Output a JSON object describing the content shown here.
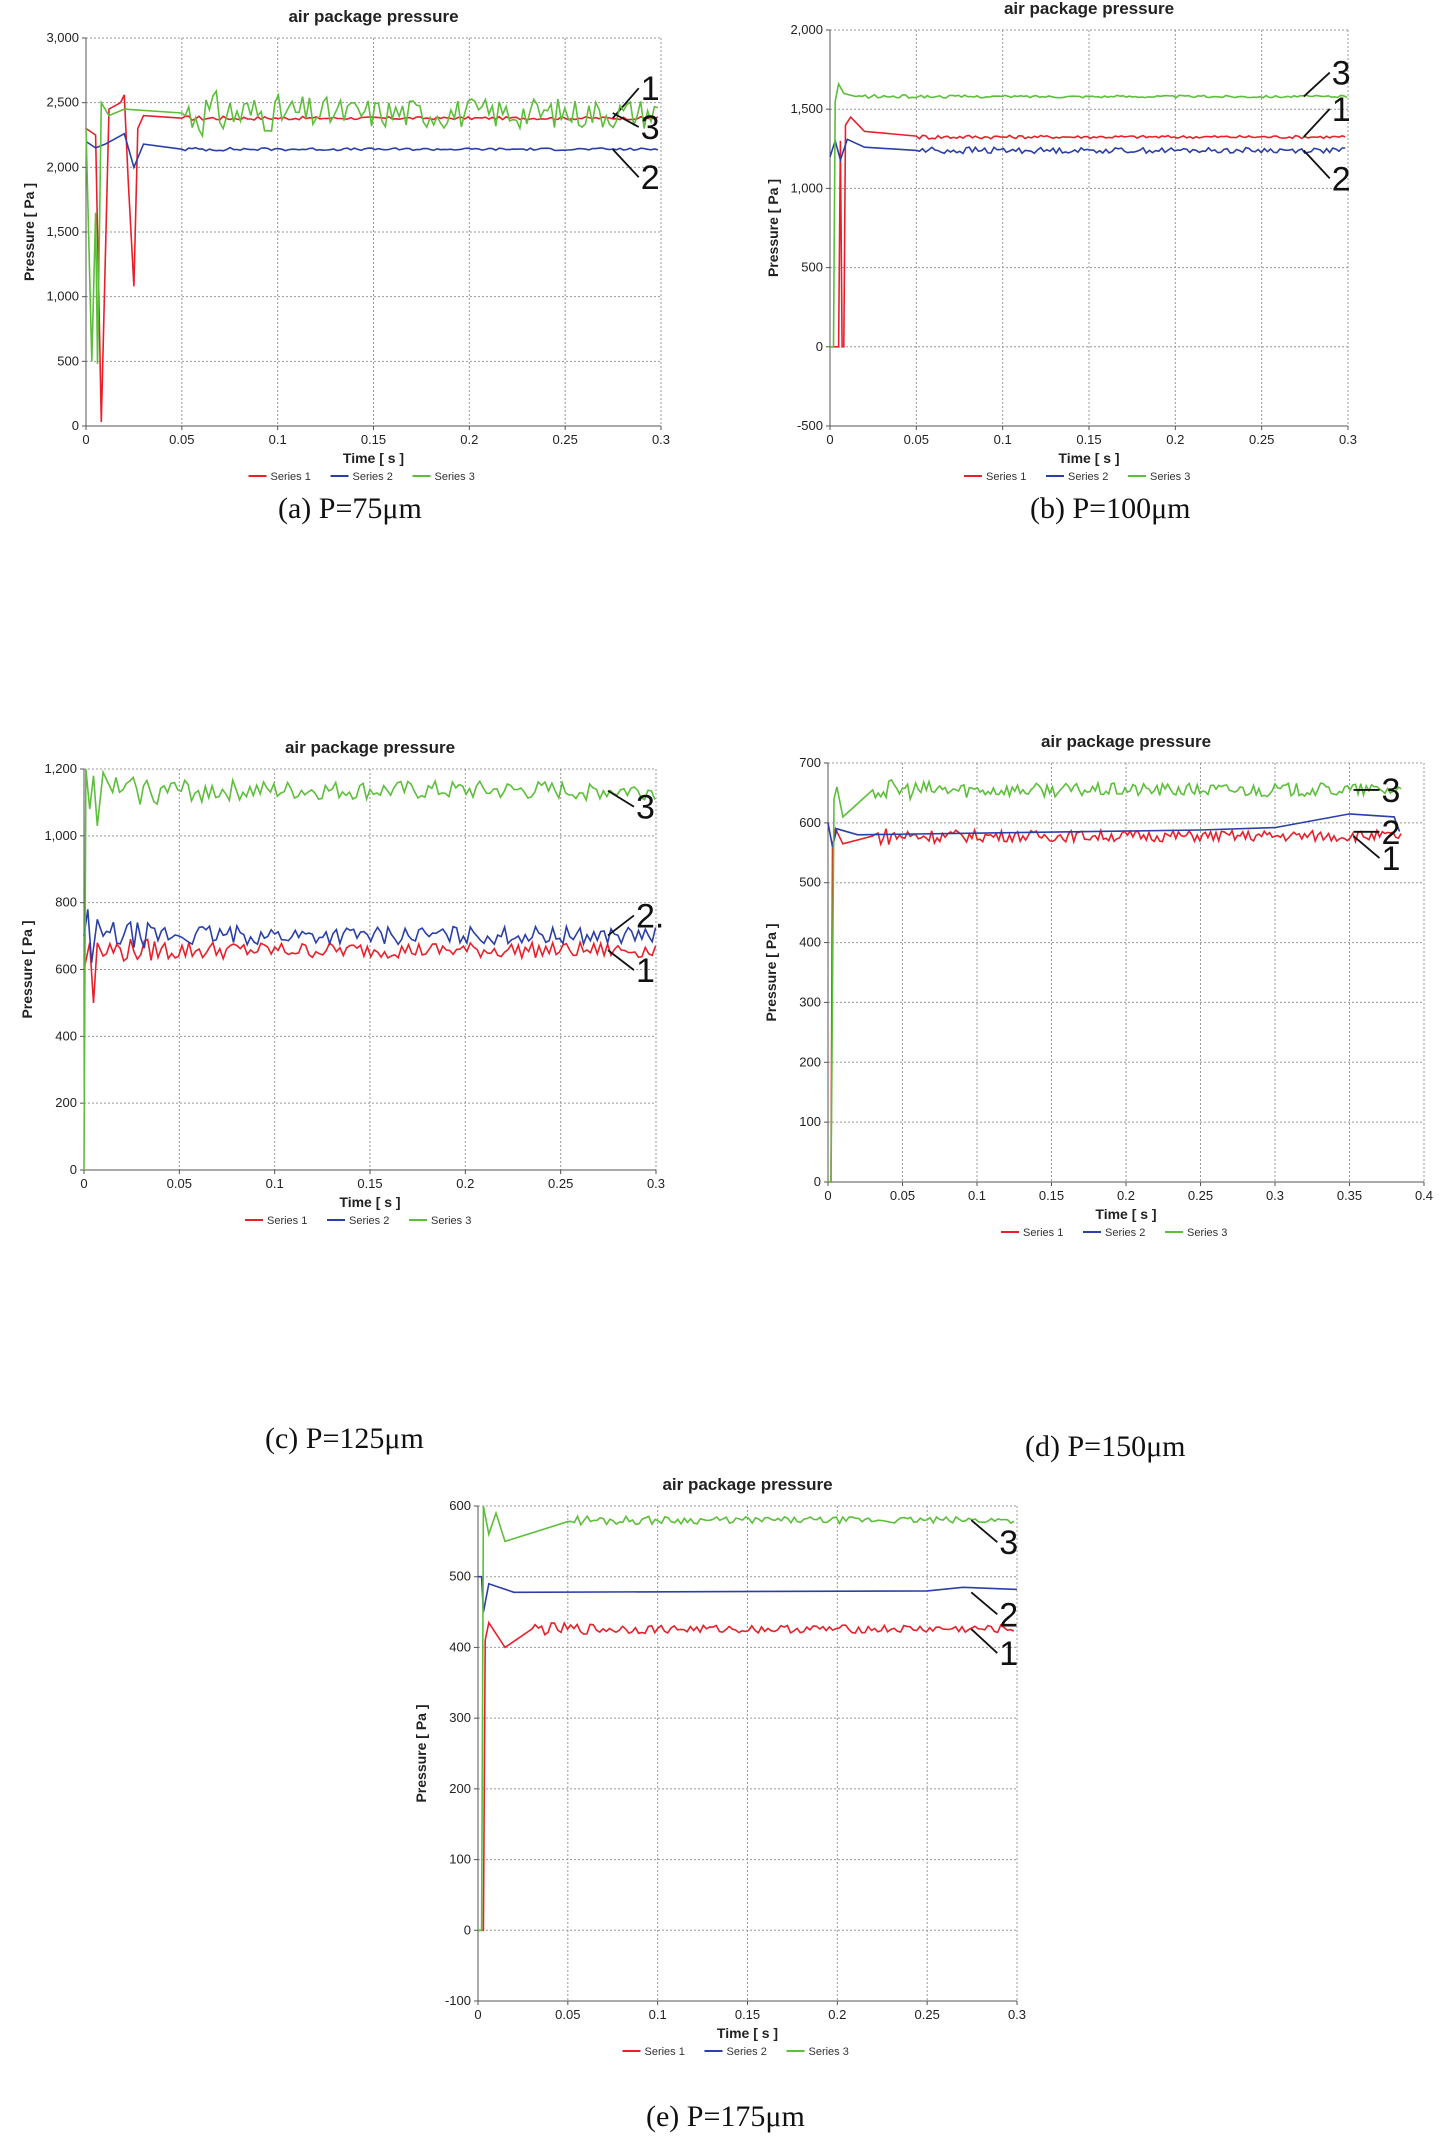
{
  "chart_data": [
    {
      "type": "line",
      "title": "air package pressure",
      "caption": "(a) P=75μm",
      "xlabel": "Time [ s ]",
      "ylabel": "Pressure [ Pa ]",
      "xlim": [
        0,
        0.3
      ],
      "ylim": [
        0,
        3000
      ],
      "xticks": [
        0,
        0.05,
        0.1,
        0.15,
        0.2,
        0.25,
        0.3
      ],
      "xtick_labels": [
        "0",
        "0.05",
        "0.1",
        "0.15",
        "0.2",
        "0.25",
        "0.3"
      ],
      "yticks": [
        0,
        500,
        1000,
        1500,
        2000,
        2500,
        3000
      ],
      "ytick_labels": [
        "0",
        "500",
        "1,000",
        "1,500",
        "2,000",
        "2,500",
        "3,000"
      ],
      "grid": true,
      "legend": [
        "Series 1",
        "Series 2",
        "Series 3"
      ],
      "colors": [
        "#e8202a",
        "#2b3fa8",
        "#5cbf3a"
      ],
      "callouts": [
        "1",
        "2",
        "3"
      ],
      "series": [
        {
          "name": "Series 1",
          "label": "1",
          "steady": 2380,
          "start": 2300,
          "noise": 12,
          "transient": [
            [
              0,
              2300
            ],
            [
              0.005,
              2250
            ],
            [
              0.008,
              30
            ],
            [
              0.012,
              2450
            ],
            [
              0.018,
              2500
            ],
            [
              0.02,
              2560
            ],
            [
              0.022,
              1900
            ],
            [
              0.025,
              1080
            ],
            [
              0.027,
              2300
            ],
            [
              0.03,
              2400
            ],
            [
              0.05,
              2380
            ]
          ]
        },
        {
          "name": "Series 2",
          "label": "2",
          "steady": 2140,
          "start": 2200,
          "noise": 10,
          "transient": [
            [
              0,
              2200
            ],
            [
              0.005,
              2150
            ],
            [
              0.01,
              2180
            ],
            [
              0.015,
              2220
            ],
            [
              0.02,
              2260
            ],
            [
              0.025,
              2000
            ],
            [
              0.03,
              2180
            ],
            [
              0.05,
              2140
            ]
          ]
        },
        {
          "name": "Series 3",
          "label": "3",
          "steady": 2420,
          "start": 2300,
          "noise": 90,
          "transient": [
            [
              0,
              2300
            ],
            [
              0.003,
              500
            ],
            [
              0.005,
              1650
            ],
            [
              0.006,
              480
            ],
            [
              0.008,
              2500
            ],
            [
              0.012,
              2400
            ],
            [
              0.02,
              2450
            ],
            [
              0.05,
              2420
            ]
          ]
        }
      ]
    },
    {
      "type": "line",
      "title": "air package pressure",
      "caption": "(b) P=100μm",
      "xlabel": "Time [ s ]",
      "ylabel": "Pressure [ Pa ]",
      "xlim": [
        0,
        0.3
      ],
      "ylim": [
        -500,
        2000
      ],
      "xticks": [
        0,
        0.05,
        0.1,
        0.15,
        0.2,
        0.25,
        0.3
      ],
      "xtick_labels": [
        "0",
        "0.05",
        "0.1",
        "0.15",
        "0.2",
        "0.25",
        "0.3"
      ],
      "yticks": [
        -500,
        0,
        500,
        1000,
        1500,
        2000
      ],
      "ytick_labels": [
        "-500",
        "0",
        "500",
        "1,000",
        "1,500",
        "2,000"
      ],
      "grid": true,
      "legend": [
        "Series 1",
        "Series 2",
        "Series 3"
      ],
      "colors": [
        "#e8202a",
        "#2b3fa8",
        "#5cbf3a"
      ],
      "callouts": [
        "1",
        "2",
        "3"
      ],
      "series": [
        {
          "name": "Series 1",
          "label": "1",
          "steady": 1325,
          "start": 0,
          "noise": 10,
          "transient": [
            [
              0,
              0
            ],
            [
              0.005,
              0
            ],
            [
              0.006,
              1300
            ],
            [
              0.007,
              0
            ],
            [
              0.008,
              0
            ],
            [
              0.009,
              1400
            ],
            [
              0.012,
              1450
            ],
            [
              0.02,
              1360
            ],
            [
              0.05,
              1330
            ]
          ]
        },
        {
          "name": "Series 2",
          "label": "2",
          "steady": 1240,
          "start": 1200,
          "noise": 18,
          "transient": [
            [
              0,
              1200
            ],
            [
              0.003,
              1300
            ],
            [
              0.006,
              1180
            ],
            [
              0.01,
              1310
            ],
            [
              0.02,
              1260
            ],
            [
              0.05,
              1240
            ]
          ]
        },
        {
          "name": "Series 3",
          "label": "3",
          "steady": 1580,
          "start": 0,
          "noise": 8,
          "transient": [
            [
              0,
              0
            ],
            [
              0.002,
              0
            ],
            [
              0.003,
              1550
            ],
            [
              0.005,
              1660
            ],
            [
              0.008,
              1600
            ],
            [
              0.015,
              1580
            ]
          ]
        }
      ]
    },
    {
      "type": "line",
      "title": "air package pressure",
      "caption": "(c) P=125μm",
      "xlabel": "Time [ s ]",
      "ylabel": "Pressure [ Pa ]",
      "xlim": [
        0,
        0.3
      ],
      "ylim": [
        0,
        1200
      ],
      "xticks": [
        0,
        0.05,
        0.1,
        0.15,
        0.2,
        0.25,
        0.3
      ],
      "xtick_labels": [
        "0",
        "0.05",
        "0.1",
        "0.15",
        "0.2",
        "0.25",
        "0.3"
      ],
      "yticks": [
        0,
        200,
        400,
        600,
        800,
        1000,
        1200
      ],
      "ytick_labels": [
        "0",
        "200",
        "400",
        "600",
        "800",
        "1,000",
        "1,200"
      ],
      "grid": true,
      "legend": [
        "Series 1",
        "Series 2",
        "Series 3"
      ],
      "colors": [
        "#e8202a",
        "#2b3fa8",
        "#5cbf3a"
      ],
      "callouts": [
        "1",
        "2.",
        "3"
      ],
      "series": [
        {
          "name": "Series 1",
          "label": "1",
          "steady": 658,
          "start": 600,
          "noise": 25,
          "transient": [
            [
              0,
              600
            ],
            [
              0.003,
              680
            ],
            [
              0.005,
              500
            ],
            [
              0.007,
              680
            ],
            [
              0.01,
              640
            ]
          ]
        },
        {
          "name": "Series 2",
          "label": "2.",
          "steady": 702,
          "start": 700,
          "noise": 28,
          "transient": [
            [
              0,
              700
            ],
            [
              0.002,
              780
            ],
            [
              0.004,
              620
            ],
            [
              0.007,
              750
            ],
            [
              0.01,
              700
            ]
          ]
        },
        {
          "name": "Series 3",
          "label": "3",
          "steady": 1135,
          "start": 0,
          "noise": 30,
          "transient": [
            [
              0,
              0
            ],
            [
              0.001,
              1200
            ],
            [
              0.003,
              1080
            ],
            [
              0.005,
              1180
            ],
            [
              0.007,
              1030
            ],
            [
              0.01,
              1190
            ],
            [
              0.015,
              1130
            ]
          ]
        }
      ]
    },
    {
      "type": "line",
      "title": "air package pressure",
      "caption": "(d) P=150μm",
      "xlabel": "Time [ s ]",
      "ylabel": "Pressure [ Pa ]",
      "xlim": [
        0,
        0.4
      ],
      "ylim": [
        0,
        700
      ],
      "xticks": [
        0,
        0.05,
        0.1,
        0.15,
        0.2,
        0.25,
        0.3,
        0.35,
        0.4
      ],
      "xtick_labels": [
        "0",
        "0.05",
        "0.1",
        "0.15",
        "0.2",
        "0.25",
        "0.3",
        "0.35",
        "0.4"
      ],
      "yticks": [
        0,
        100,
        200,
        300,
        400,
        500,
        600,
        700
      ],
      "ytick_labels": [
        "0",
        "100",
        "200",
        "300",
        "400",
        "500",
        "600",
        "700"
      ],
      "grid": true,
      "legend": [
        "Series 1",
        "Series 2",
        "Series 3"
      ],
      "colors": [
        "#e8202a",
        "#2b3fa8",
        "#5cbf3a"
      ],
      "callouts": [
        "1",
        "2",
        "3"
      ],
      "series": [
        {
          "name": "Series 1",
          "label": "1",
          "steady": 578,
          "start": 0,
          "noise": 10,
          "transient": [
            [
              0,
              0
            ],
            [
              0.002,
              0
            ],
            [
              0.003,
              560
            ],
            [
              0.005,
              590
            ],
            [
              0.01,
              565
            ],
            [
              0.03,
              578
            ]
          ]
        },
        {
          "name": "Series 2",
          "label": "2",
          "steady": 585,
          "start": 600,
          "noise": 10,
          "transient": [
            [
              0,
              600
            ],
            [
              0.003,
              560
            ],
            [
              0.006,
              590
            ],
            [
              0.02,
              580
            ],
            [
              0.25,
              588
            ],
            [
              0.3,
              592
            ],
            [
              0.35,
              615
            ],
            [
              0.38,
              610
            ]
          ]
        },
        {
          "name": "Series 3",
          "label": "3",
          "steady": 655,
          "start": 0,
          "noise": 12,
          "transient": [
            [
              0,
              0
            ],
            [
              0.002,
              0
            ],
            [
              0.004,
              640
            ],
            [
              0.006,
              660
            ],
            [
              0.01,
              610
            ],
            [
              0.03,
              655
            ]
          ]
        }
      ]
    },
    {
      "type": "line",
      "title": "air package pressure",
      "caption": "(e) P=175μm",
      "xlabel": "Time [ s ]",
      "ylabel": "Pressure [ Pa ]",
      "xlim": [
        0,
        0.3
      ],
      "ylim": [
        -100,
        600
      ],
      "xticks": [
        0,
        0.05,
        0.1,
        0.15,
        0.2,
        0.25,
        0.3
      ],
      "xtick_labels": [
        "0",
        "0.05",
        "0.1",
        "0.15",
        "0.2",
        "0.25",
        "0.3"
      ],
      "yticks": [
        -100,
        0,
        100,
        200,
        300,
        400,
        500,
        600
      ],
      "ytick_labels": [
        "-100",
        "0",
        "100",
        "200",
        "300",
        "400",
        "500",
        "600"
      ],
      "grid": true,
      "legend": [
        "Series 1",
        "Series 2",
        "Series 3"
      ],
      "colors": [
        "#e8202a",
        "#2b3fa8",
        "#5cbf3a"
      ],
      "callouts": [
        "1",
        "2",
        "3"
      ],
      "series": [
        {
          "name": "Series 1",
          "label": "1",
          "steady": 426,
          "start": 0,
          "noise": 6,
          "transient": [
            [
              0,
              0
            ],
            [
              0.003,
              0
            ],
            [
              0.004,
              410
            ],
            [
              0.006,
              435
            ],
            [
              0.015,
              400
            ],
            [
              0.03,
              426
            ]
          ]
        },
        {
          "name": "Series 2",
          "label": "2",
          "steady": 478,
          "start": 500,
          "noise": 5,
          "transient": [
            [
              0,
              500
            ],
            [
              0.002,
              500
            ],
            [
              0.003,
              450
            ],
            [
              0.006,
              490
            ],
            [
              0.02,
              478
            ],
            [
              0.25,
              480
            ],
            [
              0.27,
              485
            ],
            [
              0.3,
              482
            ]
          ]
        },
        {
          "name": "Series 3",
          "label": "3",
          "steady": 580,
          "start": 0,
          "noise": 5,
          "transient": [
            [
              0,
              0
            ],
            [
              0.002,
              0
            ],
            [
              0.003,
              600
            ],
            [
              0.006,
              560
            ],
            [
              0.01,
              590
            ],
            [
              0.015,
              550
            ],
            [
              0.05,
              578
            ]
          ]
        }
      ]
    }
  ]
}
